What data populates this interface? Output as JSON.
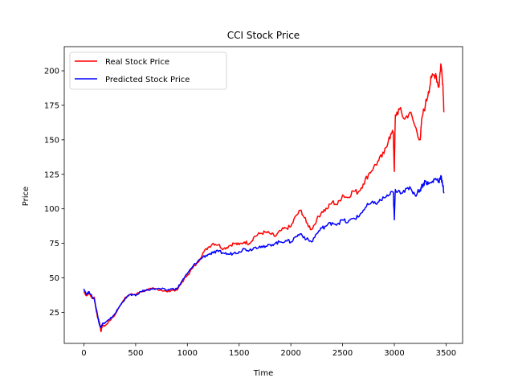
{
  "chart_data": {
    "type": "line",
    "title": "CCI Stock Price",
    "xlabel": "Time",
    "ylabel": "Price",
    "xlim": [
      -190,
      3660
    ],
    "ylim": [
      2.5,
      217.5
    ],
    "xticks": [
      0,
      500,
      1000,
      1500,
      2000,
      2500,
      3000,
      3500
    ],
    "xtick_labels": [
      "0",
      "500",
      "1000",
      "1500",
      "2000",
      "2500",
      "3000",
      "3500"
    ],
    "yticks": [
      25,
      50,
      75,
      100,
      125,
      150,
      175,
      200
    ],
    "ytick_labels": [
      "25",
      "50",
      "75",
      "100",
      "125",
      "150",
      "175",
      "200"
    ],
    "grid": false,
    "legend_position": "top-left",
    "series": [
      {
        "name": "Real Stock Price",
        "color": "#ff0000",
        "x": [
          0,
          25,
          50,
          80,
          100,
          115,
          130,
          150,
          165,
          180,
          200,
          250,
          300,
          350,
          400,
          450,
          500,
          550,
          600,
          650,
          700,
          750,
          800,
          850,
          900,
          950,
          1000,
          1050,
          1100,
          1150,
          1200,
          1250,
          1300,
          1350,
          1400,
          1450,
          1500,
          1550,
          1600,
          1650,
          1700,
          1750,
          1800,
          1850,
          1900,
          1950,
          2000,
          2050,
          2100,
          2150,
          2200,
          2250,
          2300,
          2350,
          2400,
          2450,
          2500,
          2550,
          2600,
          2650,
          2700,
          2750,
          2800,
          2850,
          2900,
          2950,
          2990,
          3000,
          3010,
          3050,
          3100,
          3150,
          3200,
          3250,
          3270,
          3300,
          3330,
          3360,
          3400,
          3430,
          3450,
          3470,
          3480
        ],
        "y": [
          40,
          37,
          39,
          35,
          36,
          28,
          22,
          18,
          11,
          16,
          15,
          19,
          23,
          30,
          36,
          38,
          38,
          40,
          41,
          42,
          42,
          41,
          40,
          41,
          41,
          47,
          52,
          57,
          61,
          68,
          72,
          75,
          74,
          71,
          73,
          75,
          74,
          76,
          75,
          80,
          82,
          83,
          82,
          80,
          84,
          86,
          87,
          95,
          99,
          90,
          85,
          92,
          98,
          100,
          105,
          103,
          110,
          108,
          113,
          112,
          118,
          125,
          130,
          135,
          140,
          152,
          155,
          127,
          168,
          172,
          165,
          170,
          160,
          150,
          167,
          175,
          185,
          195,
          198,
          188,
          205,
          190,
          170
        ]
      },
      {
        "name": "Predicted Stock Price",
        "color": "#0000ff",
        "x": [
          0,
          25,
          50,
          80,
          100,
          115,
          130,
          150,
          165,
          180,
          200,
          250,
          300,
          350,
          400,
          450,
          500,
          550,
          600,
          650,
          700,
          750,
          800,
          850,
          900,
          950,
          1000,
          1050,
          1100,
          1150,
          1200,
          1250,
          1300,
          1350,
          1400,
          1450,
          1500,
          1550,
          1600,
          1650,
          1700,
          1750,
          1800,
          1850,
          1900,
          1950,
          2000,
          2050,
          2100,
          2150,
          2200,
          2250,
          2300,
          2350,
          2400,
          2450,
          2500,
          2550,
          2600,
          2650,
          2700,
          2750,
          2800,
          2850,
          2900,
          2950,
          2990,
          3000,
          3010,
          3050,
          3100,
          3150,
          3200,
          3250,
          3270,
          3300,
          3330,
          3360,
          3400,
          3430,
          3450,
          3470,
          3480
        ],
        "y": [
          42,
          38,
          40,
          36,
          35,
          29,
          24,
          16,
          14,
          17,
          17,
          20,
          24,
          30,
          35,
          38,
          37,
          40,
          41,
          42,
          42,
          42,
          41,
          42,
          42,
          48,
          53,
          58,
          62,
          65,
          67,
          68,
          69,
          68,
          67,
          68,
          69,
          71,
          70,
          72,
          73,
          72,
          74,
          75,
          76,
          77,
          76,
          80,
          82,
          78,
          76,
          82,
          86,
          88,
          90,
          89,
          92,
          90,
          93,
          94,
          99,
          103,
          104,
          105,
          108,
          110,
          112,
          92,
          114,
          113,
          112,
          116,
          110,
          114,
          117,
          120,
          118,
          119,
          122,
          120,
          124,
          116,
          112
        ]
      }
    ]
  }
}
